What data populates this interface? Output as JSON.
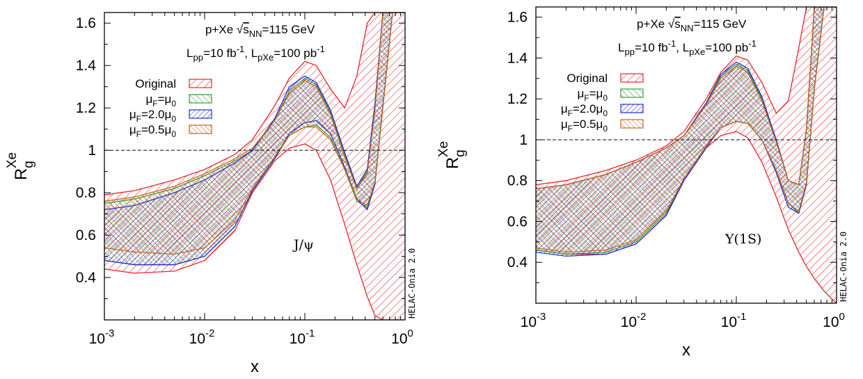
{
  "colors": {
    "Original": "#e8242a",
    "muF=mu0": "#2e9d3a",
    "muF=2.0mu0": "#1f2fd0",
    "muF=0.5mu0": "#c8641a"
  },
  "chart_data": [
    {
      "type": "area",
      "subtype": "uncertainty-bands",
      "xlabel": "x",
      "ylabel": "R",
      "ylabel_sub": "g",
      "ylabel_sup": "Xe",
      "xscale": "log",
      "xlim": [
        0.001,
        1
      ],
      "ylim": [
        0.2,
        1.65
      ],
      "x_tick_labels": [
        {
          "base": "10",
          "exp": "-3"
        },
        {
          "base": "10",
          "exp": "-2"
        },
        {
          "base": "10",
          "exp": "-1"
        },
        {
          "base": "10",
          "exp": "0"
        }
      ],
      "y_tick_labels": [
        "0.4",
        "0.6",
        "0.8",
        "1",
        "1.2",
        "1.4",
        "1.6"
      ],
      "y_ticks": [
        0.4,
        0.6,
        0.8,
        1.0,
        1.2,
        1.4,
        1.6
      ],
      "reference_line": 1.0,
      "header_line1": {
        "pre": "p+Xe ",
        "root": "√",
        "s": "s",
        "sub": "NN",
        "post": "=115 GeV"
      },
      "header_line2": {
        "a": "L",
        "a_sub": "pp",
        "a_mid": "=10 fb",
        "a_sup": "-1",
        "b": ", L",
        "b_sub": "pXe",
        "b_mid": "=100 pb",
        "b_sup": "-1"
      },
      "process_label": "J/ψ",
      "credit": "HELAC-Onia 2.0",
      "legend": [
        {
          "label": "Original"
        },
        {
          "mu": "μ",
          "sub": "F",
          "eq": "=",
          "mu2": "μ",
          "sub2": "0"
        },
        {
          "mu": "μ",
          "sub": "F",
          "eq": "=2.0",
          "mu2": "μ",
          "sub2": "0"
        },
        {
          "mu": "μ",
          "sub": "F",
          "eq": "=0.5",
          "mu2": "μ",
          "sub2": "0"
        }
      ],
      "x": [
        0.001,
        0.002,
        0.005,
        0.01,
        0.02,
        0.03,
        0.05,
        0.07,
        0.1,
        0.13,
        0.18,
        0.25,
        0.33,
        0.42,
        0.5,
        0.6,
        0.75,
        0.9,
        1.0
      ],
      "series": [
        {
          "name": "Original",
          "upper": [
            0.79,
            0.81,
            0.86,
            0.91,
            0.98,
            1.05,
            1.21,
            1.34,
            1.42,
            1.4,
            1.29,
            1.2,
            1.35,
            1.6,
            1.65,
            1.65,
            1.65,
            1.65,
            1.65
          ],
          "lower": [
            0.44,
            0.42,
            0.43,
            0.48,
            0.62,
            0.8,
            0.95,
            1.01,
            1.03,
            1.0,
            0.86,
            0.65,
            0.46,
            0.31,
            0.22,
            0.2,
            0.2,
            0.2,
            0.2
          ]
        },
        {
          "name": "muF=mu0",
          "upper": [
            0.75,
            0.77,
            0.82,
            0.88,
            0.95,
            1.0,
            1.14,
            1.28,
            1.34,
            1.31,
            1.18,
            0.98,
            0.82,
            0.9,
            1.2,
            1.65,
            1.65,
            1.65,
            1.65
          ],
          "lower": [
            0.48,
            0.46,
            0.46,
            0.5,
            0.64,
            0.81,
            0.96,
            1.07,
            1.11,
            1.12,
            1.06,
            0.91,
            0.76,
            0.73,
            0.84,
            1.2,
            1.65,
            1.65,
            1.65
          ]
        },
        {
          "name": "muF=2.0mu0",
          "upper": [
            0.72,
            0.74,
            0.8,
            0.86,
            0.94,
            1.0,
            1.15,
            1.3,
            1.35,
            1.32,
            1.19,
            0.99,
            0.83,
            0.91,
            1.22,
            1.65,
            1.65,
            1.65,
            1.65
          ],
          "lower": [
            0.48,
            0.46,
            0.46,
            0.5,
            0.64,
            0.81,
            0.96,
            1.08,
            1.13,
            1.14,
            1.08,
            0.92,
            0.77,
            0.72,
            0.84,
            1.21,
            1.65,
            1.65,
            1.65
          ]
        },
        {
          "name": "muF=0.5mu0",
          "upper": [
            0.76,
            0.78,
            0.83,
            0.89,
            0.96,
            1.01,
            1.14,
            1.27,
            1.33,
            1.3,
            1.17,
            0.97,
            0.82,
            0.89,
            1.19,
            1.65,
            1.65,
            1.65,
            1.65
          ],
          "lower": [
            0.54,
            0.52,
            0.51,
            0.54,
            0.67,
            0.82,
            0.97,
            1.07,
            1.11,
            1.11,
            1.05,
            0.91,
            0.77,
            0.74,
            0.85,
            1.2,
            1.65,
            1.65,
            1.65
          ]
        }
      ]
    },
    {
      "type": "area",
      "subtype": "uncertainty-bands",
      "xlabel": "x",
      "ylabel": "R",
      "ylabel_sub": "g",
      "ylabel_sup": "Xe",
      "xscale": "log",
      "xlim": [
        0.001,
        1
      ],
      "ylim": [
        0.2,
        1.65
      ],
      "x_tick_labels": [
        {
          "base": "10",
          "exp": "-3"
        },
        {
          "base": "10",
          "exp": "-2"
        },
        {
          "base": "10",
          "exp": "-1"
        },
        {
          "base": "10",
          "exp": "0"
        }
      ],
      "y_tick_labels": [
        "0.4",
        "0.6",
        "0.8",
        "1",
        "1.2",
        "1.4",
        "1.6"
      ],
      "y_ticks": [
        0.4,
        0.6,
        0.8,
        1.0,
        1.2,
        1.4,
        1.6
      ],
      "reference_line": 1.0,
      "header_line1": {
        "pre": "p+Xe ",
        "root": "√",
        "s": "s",
        "sub": "NN",
        "post": "=115 GeV"
      },
      "header_line2": {
        "a": "L",
        "a_sub": "pp",
        "a_mid": "=10 fb",
        "a_sup": "-1",
        "b": ", L",
        "b_sub": "pXe",
        "b_mid": "=100 pb",
        "b_sup": "-1"
      },
      "process_label": "Υ(1S)",
      "credit": "HELAC-Onia 2.0",
      "legend": [
        {
          "label": "Original"
        },
        {
          "mu": "μ",
          "sub": "F",
          "eq": "=",
          "mu2": "μ",
          "sub2": "0"
        },
        {
          "mu": "μ",
          "sub": "F",
          "eq": "=2.0",
          "mu2": "μ",
          "sub2": "0"
        },
        {
          "mu": "μ",
          "sub": "F",
          "eq": "=0.5",
          "mu2": "μ",
          "sub2": "0"
        }
      ],
      "x": [
        0.001,
        0.002,
        0.005,
        0.01,
        0.02,
        0.03,
        0.05,
        0.07,
        0.1,
        0.13,
        0.18,
        0.25,
        0.33,
        0.42,
        0.5,
        0.6,
        0.75,
        0.9,
        1.0
      ],
      "series": [
        {
          "name": "Original",
          "upper": [
            0.78,
            0.8,
            0.85,
            0.9,
            0.97,
            1.04,
            1.2,
            1.33,
            1.41,
            1.39,
            1.28,
            1.13,
            1.19,
            1.45,
            1.65,
            1.65,
            1.65,
            1.65,
            1.65
          ],
          "lower": [
            0.46,
            0.44,
            0.44,
            0.49,
            0.63,
            0.8,
            0.96,
            1.02,
            1.04,
            1.01,
            0.89,
            0.72,
            0.56,
            0.45,
            0.38,
            0.32,
            0.26,
            0.22,
            0.2
          ]
        },
        {
          "name": "muF=mu0",
          "upper": [
            0.76,
            0.78,
            0.83,
            0.89,
            0.96,
            1.02,
            1.18,
            1.31,
            1.37,
            1.34,
            1.2,
            1.0,
            0.8,
            0.78,
            1.05,
            1.65,
            1.65,
            1.65,
            1.65
          ],
          "lower": [
            0.46,
            0.44,
            0.45,
            0.5,
            0.64,
            0.81,
            0.97,
            1.06,
            1.09,
            1.08,
            1.0,
            0.85,
            0.69,
            0.64,
            0.78,
            1.25,
            1.65,
            1.65,
            1.65
          ]
        },
        {
          "name": "muF=2.0mu0",
          "upper": [
            0.76,
            0.78,
            0.83,
            0.89,
            0.96,
            1.02,
            1.18,
            1.32,
            1.38,
            1.35,
            1.21,
            1.0,
            0.8,
            0.78,
            1.05,
            1.65,
            1.65,
            1.65,
            1.65
          ],
          "lower": [
            0.45,
            0.43,
            0.44,
            0.49,
            0.63,
            0.8,
            0.96,
            1.06,
            1.09,
            1.08,
            1.0,
            0.84,
            0.67,
            0.64,
            0.78,
            1.25,
            1.65,
            1.65,
            1.65
          ]
        },
        {
          "name": "muF=0.5mu0",
          "upper": [
            0.76,
            0.78,
            0.83,
            0.89,
            0.96,
            1.02,
            1.17,
            1.3,
            1.36,
            1.33,
            1.19,
            0.99,
            0.8,
            0.78,
            1.05,
            1.65,
            1.65,
            1.65,
            1.65
          ],
          "lower": [
            0.47,
            0.45,
            0.46,
            0.51,
            0.65,
            0.81,
            0.97,
            1.06,
            1.09,
            1.08,
            1.0,
            0.85,
            0.69,
            0.65,
            0.79,
            1.25,
            1.65,
            1.65,
            1.65
          ]
        }
      ]
    }
  ]
}
